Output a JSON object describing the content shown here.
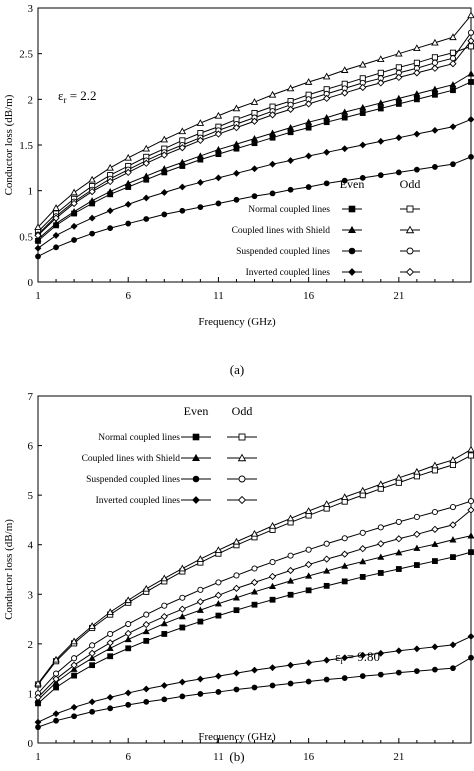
{
  "chart_data": [
    {
      "type": "line",
      "caption": "(a)",
      "title": "",
      "xlabel": "Frequency (GHz)",
      "ylabel": "Conductor loss (dB/m)",
      "annotation_main": "ε",
      "annotation_sub": "r",
      "annotation_value": " = 2.2",
      "xlim": [
        1,
        25
      ],
      "ylim": [
        0,
        3
      ],
      "xticks": [
        "1",
        "6",
        "11",
        "16",
        "21"
      ],
      "yticks": [
        "0",
        "0.5",
        "1",
        "1.5",
        "2",
        "2.5",
        "3"
      ],
      "legend_position": "bottom-right",
      "legend_headers": {
        "even": "Even",
        "odd": "Odd"
      },
      "legend_rows": [
        "Normal coupled lines",
        "Coupled lines with Shield",
        "Suspended coupled lines",
        "Inverted coupled lines"
      ],
      "x": [
        1,
        2,
        3,
        4,
        5,
        6,
        7,
        8,
        9,
        10,
        11,
        12,
        13,
        14,
        15,
        16,
        17,
        18,
        19,
        20,
        21,
        22,
        23,
        24,
        25
      ],
      "series": [
        {
          "group": "Normal coupled lines",
          "parity": "Even",
          "marker": "square-filled",
          "values": [
            0.45,
            0.62,
            0.75,
            0.86,
            0.96,
            1.04,
            1.12,
            1.2,
            1.27,
            1.34,
            1.4,
            1.46,
            1.52,
            1.58,
            1.64,
            1.69,
            1.75,
            1.8,
            1.85,
            1.9,
            1.95,
            2.0,
            2.05,
            2.1,
            2.19
          ]
        },
        {
          "group": "Normal coupled lines",
          "parity": "Odd",
          "marker": "square-open",
          "values": [
            0.55,
            0.75,
            0.91,
            1.05,
            1.17,
            1.27,
            1.37,
            1.46,
            1.55,
            1.63,
            1.7,
            1.78,
            1.85,
            1.92,
            1.98,
            2.05,
            2.11,
            2.17,
            2.23,
            2.29,
            2.35,
            2.4,
            2.46,
            2.51,
            2.58
          ]
        },
        {
          "group": "Coupled lines with Shield",
          "parity": "Even",
          "marker": "triangle-filled",
          "values": [
            0.47,
            0.64,
            0.77,
            0.89,
            0.99,
            1.08,
            1.16,
            1.24,
            1.31,
            1.38,
            1.45,
            1.51,
            1.57,
            1.63,
            1.69,
            1.75,
            1.8,
            1.86,
            1.91,
            1.96,
            2.01,
            2.06,
            2.11,
            2.16,
            2.28
          ]
        },
        {
          "group": "Coupled lines with Shield",
          "parity": "Odd",
          "marker": "triangle-open",
          "values": [
            0.6,
            0.81,
            0.98,
            1.12,
            1.25,
            1.36,
            1.46,
            1.56,
            1.65,
            1.74,
            1.82,
            1.9,
            1.97,
            2.05,
            2.12,
            2.19,
            2.25,
            2.32,
            2.38,
            2.44,
            2.5,
            2.56,
            2.62,
            2.68,
            2.92
          ]
        },
        {
          "group": "Suspended coupled lines",
          "parity": "Even",
          "marker": "circle-filled",
          "values": [
            0.28,
            0.38,
            0.46,
            0.53,
            0.59,
            0.64,
            0.69,
            0.74,
            0.78,
            0.82,
            0.86,
            0.9,
            0.94,
            0.97,
            1.01,
            1.04,
            1.08,
            1.11,
            1.14,
            1.17,
            1.2,
            1.23,
            1.26,
            1.29,
            1.37
          ]
        },
        {
          "group": "Suspended coupled lines",
          "parity": "Odd",
          "marker": "circle-open",
          "values": [
            0.52,
            0.72,
            0.88,
            1.01,
            1.13,
            1.23,
            1.33,
            1.42,
            1.5,
            1.58,
            1.66,
            1.73,
            1.8,
            1.87,
            1.94,
            2.0,
            2.06,
            2.12,
            2.18,
            2.23,
            2.29,
            2.34,
            2.4,
            2.45,
            2.73
          ]
        },
        {
          "group": "Inverted coupled lines",
          "parity": "Even",
          "marker": "diamond-filled",
          "values": [
            0.37,
            0.51,
            0.61,
            0.7,
            0.78,
            0.85,
            0.92,
            0.98,
            1.04,
            1.09,
            1.14,
            1.19,
            1.24,
            1.29,
            1.33,
            1.38,
            1.42,
            1.46,
            1.5,
            1.54,
            1.58,
            1.62,
            1.66,
            1.7,
            1.78
          ]
        },
        {
          "group": "Inverted coupled lines",
          "parity": "Odd",
          "marker": "diamond-open",
          "values": [
            0.51,
            0.7,
            0.86,
            0.99,
            1.1,
            1.2,
            1.3,
            1.39,
            1.47,
            1.55,
            1.62,
            1.69,
            1.76,
            1.83,
            1.89,
            1.95,
            2.01,
            2.07,
            2.13,
            2.18,
            2.24,
            2.29,
            2.34,
            2.39,
            2.64
          ]
        }
      ]
    },
    {
      "type": "line",
      "caption": "(b)",
      "title": "",
      "xlabel": "Frequency (GHz)",
      "ylabel": "Conductor loss (dB/m)",
      "annotation_main": "ε",
      "annotation_sub": "r",
      "annotation_value": " = 9.80",
      "xlim": [
        1,
        25
      ],
      "ylim": [
        0,
        7
      ],
      "xticks": [
        "1",
        "6",
        "11",
        "16",
        "21"
      ],
      "yticks": [
        "0",
        "1",
        "2",
        "3",
        "4",
        "5",
        "6",
        "7"
      ],
      "legend_position": "top-left",
      "legend_headers": {
        "even": "Even",
        "odd": "Odd"
      },
      "legend_rows": [
        "Normal coupled lines",
        "Coupled lines with Shield",
        "Suspended coupled lines",
        "Inverted coupled lines"
      ],
      "x": [
        1,
        2,
        3,
        4,
        5,
        6,
        7,
        8,
        9,
        10,
        11,
        12,
        13,
        14,
        15,
        16,
        17,
        18,
        19,
        20,
        21,
        22,
        23,
        24,
        25
      ],
      "series": [
        {
          "group": "Normal coupled lines",
          "parity": "Even",
          "marker": "square-filled",
          "values": [
            0.8,
            1.12,
            1.36,
            1.57,
            1.75,
            1.91,
            2.06,
            2.2,
            2.33,
            2.45,
            2.57,
            2.68,
            2.79,
            2.89,
            2.99,
            3.08,
            3.17,
            3.26,
            3.35,
            3.43,
            3.51,
            3.59,
            3.67,
            3.75,
            3.85
          ]
        },
        {
          "group": "Normal coupled lines",
          "parity": "Odd",
          "marker": "square-open",
          "values": [
            1.18,
            1.65,
            2.01,
            2.32,
            2.59,
            2.83,
            3.05,
            3.26,
            3.46,
            3.64,
            3.82,
            3.99,
            4.15,
            4.3,
            4.45,
            4.59,
            4.73,
            4.87,
            5.0,
            5.13,
            5.25,
            5.38,
            5.5,
            5.61,
            5.8
          ]
        },
        {
          "group": "Coupled lines with Shield",
          "parity": "Even",
          "marker": "triangle-filled",
          "values": [
            0.87,
            1.22,
            1.49,
            1.71,
            1.91,
            2.09,
            2.25,
            2.41,
            2.55,
            2.68,
            2.81,
            2.93,
            3.05,
            3.16,
            3.27,
            3.37,
            3.47,
            3.57,
            3.66,
            3.75,
            3.84,
            3.93,
            4.01,
            4.1,
            4.18
          ]
        },
        {
          "group": "Coupled lines with Shield",
          "parity": "Odd",
          "marker": "triangle-open",
          "values": [
            1.2,
            1.68,
            2.05,
            2.36,
            2.64,
            2.88,
            3.11,
            3.32,
            3.52,
            3.71,
            3.89,
            4.06,
            4.22,
            4.38,
            4.53,
            4.68,
            4.82,
            4.96,
            5.09,
            5.22,
            5.35,
            5.47,
            5.6,
            5.71,
            5.92
          ]
        },
        {
          "group": "Suspended coupled lines",
          "parity": "Even",
          "marker": "circle-filled",
          "values": [
            0.32,
            0.45,
            0.54,
            0.63,
            0.7,
            0.77,
            0.83,
            0.88,
            0.94,
            0.99,
            1.03,
            1.08,
            1.12,
            1.16,
            1.2,
            1.24,
            1.28,
            1.31,
            1.35,
            1.38,
            1.42,
            1.45,
            1.48,
            1.51,
            1.72
          ]
        },
        {
          "group": "Suspended coupled lines",
          "parity": "Odd",
          "marker": "circle-open",
          "values": [
            1.0,
            1.4,
            1.71,
            1.97,
            2.2,
            2.4,
            2.59,
            2.77,
            2.93,
            3.09,
            3.24,
            3.38,
            3.52,
            3.65,
            3.78,
            3.9,
            4.02,
            4.13,
            4.24,
            4.35,
            4.46,
            4.56,
            4.66,
            4.76,
            4.88
          ]
        },
        {
          "group": "Inverted coupled lines",
          "parity": "Even",
          "marker": "diamond-filled",
          "values": [
            0.42,
            0.59,
            0.72,
            0.83,
            0.92,
            1.01,
            1.09,
            1.16,
            1.23,
            1.29,
            1.35,
            1.41,
            1.47,
            1.52,
            1.57,
            1.62,
            1.67,
            1.72,
            1.77,
            1.81,
            1.86,
            1.9,
            1.94,
            1.98,
            2.15
          ]
        },
        {
          "group": "Inverted coupled lines",
          "parity": "Odd",
          "marker": "diamond-open",
          "values": [
            0.92,
            1.29,
            1.57,
            1.81,
            2.02,
            2.21,
            2.39,
            2.55,
            2.7,
            2.85,
            2.98,
            3.12,
            3.24,
            3.36,
            3.48,
            3.6,
            3.71,
            3.81,
            3.92,
            4.02,
            4.12,
            4.21,
            4.31,
            4.4,
            4.7
          ]
        }
      ]
    }
  ]
}
